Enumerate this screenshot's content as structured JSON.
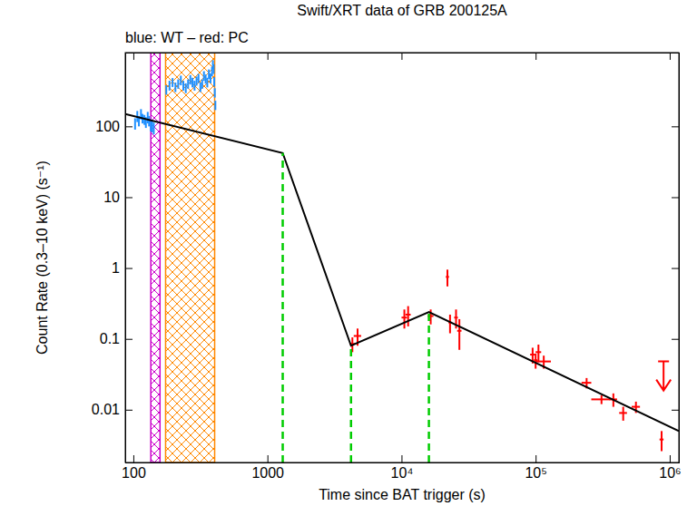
{
  "chart_data": {
    "type": "scatter",
    "title": "Swift/XRT data of GRB 200125A",
    "subtitle": "blue: WT – red: PC",
    "x_label": "Time since BAT trigger (s)",
    "y_label": "Count Rate (0.3–10 keV) (s⁻¹)",
    "log": true,
    "grid": false,
    "xlim": [
      87,
      1170000
    ],
    "ylim": [
      0.0018,
      1100
    ],
    "xticks": [
      100,
      1000,
      {
        "value": 10000,
        "label": "10⁴"
      },
      {
        "value": 100000,
        "label": "10⁵"
      },
      {
        "value": 1000000,
        "label": "10⁶"
      }
    ],
    "yticks": [
      0.01,
      0.1,
      1,
      10,
      100
    ],
    "regions": [
      {
        "start": 135,
        "end": 158,
        "color": "#cc00cc"
      },
      {
        "start": 174,
        "end": 404,
        "color": "#ff8800"
      }
    ],
    "series": [
      {
        "type": "scatter",
        "marker": "errorbar",
        "color": "#1e90ff",
        "x": [
          103,
          107,
          110,
          114,
          117,
          121,
          124,
          128,
          131,
          135,
          138,
          142,
          176,
          186,
          196,
          206,
          216,
          226,
          236,
          246,
          256,
          266,
          276,
          286,
          296,
          306,
          316,
          326,
          336,
          346,
          356,
          366,
          376,
          386,
          392,
          397,
          401,
          405,
          409
        ],
        "values": [
          110,
          140,
          120,
          150,
          130,
          125,
          115,
          135,
          120,
          105,
          100,
          95,
          330,
          380,
          420,
          360,
          400,
          450,
          380,
          350,
          400,
          460,
          420,
          380,
          440,
          480,
          360,
          400,
          520,
          470,
          420,
          550,
          480,
          600,
          750,
          650,
          430,
          300,
          200
        ],
        "yerr": [
          20,
          25,
          20,
          25,
          20,
          20,
          20,
          25,
          20,
          20,
          18,
          18,
          50,
          60,
          60,
          55,
          60,
          70,
          60,
          55,
          60,
          70,
          65,
          60,
          65,
          70,
          55,
          60,
          80,
          70,
          65,
          85,
          75,
          90,
          110,
          100,
          65,
          45,
          30
        ]
      },
      {
        "type": "scatter",
        "marker": "errorbar",
        "color": "#ff0000",
        "x": [
          4300,
          4700,
          10500,
          11200,
          16500,
          22000,
          23000,
          25500,
          27000,
          95000,
          100000,
          105000,
          115000,
          240000,
          310000,
          380000,
          450000,
          560000,
          870000
        ],
        "values": [
          0.085,
          0.11,
          0.2,
          0.22,
          0.21,
          0.75,
          0.17,
          0.2,
          0.13,
          0.06,
          0.05,
          0.065,
          0.048,
          0.024,
          0.014,
          0.014,
          0.009,
          0.011,
          0.0038
        ],
        "yerr": [
          0.02,
          0.03,
          0.06,
          0.07,
          0.05,
          0.2,
          0.05,
          0.06,
          0.06,
          0.015,
          0.012,
          0.018,
          0.01,
          0.004,
          0.002,
          0.003,
          0.002,
          0.002,
          0.0012
        ],
        "xerr": [
          200,
          300,
          500,
          500,
          800,
          600,
          600,
          800,
          1000,
          4000,
          3000,
          5000,
          15000,
          20000,
          50000,
          25000,
          30000,
          40000,
          30000
        ]
      },
      {
        "type": "line",
        "color": "#000000",
        "line_style": "solid",
        "x": [
          87,
          1300,
          4200,
          16000,
          1170000
        ],
        "values": [
          150,
          42,
          0.08,
          0.24,
          0.005
        ]
      },
      {
        "type": "vline",
        "color": "#00cc00",
        "line_style": "dashed",
        "x": [
          1300,
          4200,
          16000
        ],
        "values": [
          42,
          0.08,
          0.24
        ]
      },
      {
        "type": "scatter",
        "marker": "arrow_down",
        "color": "#ff0000",
        "x": [
          900000
        ],
        "values": [
          0.048
        ]
      }
    ]
  }
}
